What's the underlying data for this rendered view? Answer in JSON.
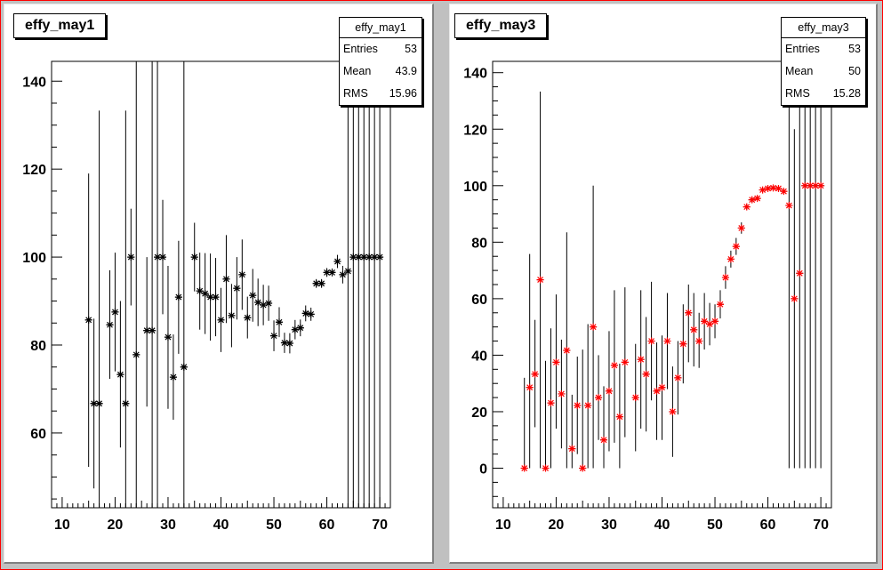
{
  "chart_data": [
    {
      "type": "scatter",
      "title": "effy_may1",
      "stats": {
        "name": "effy_may1",
        "entries_label": "Entries",
        "entries": "53",
        "mean_label": "Mean",
        "mean": "43.9",
        "rms_label": "RMS",
        "rms": "15.96"
      },
      "xlim": [
        8,
        72
      ],
      "ylim": [
        43,
        144.5
      ],
      "xticks": [
        10,
        20,
        30,
        40,
        50,
        60,
        70
      ],
      "yticks": [
        60,
        80,
        100,
        120,
        140
      ],
      "marker": "star",
      "color": "#000000",
      "points": [
        {
          "x": 15,
          "y": 85.7,
          "lo": 52.3,
          "hi": 119
        },
        {
          "x": 16,
          "y": 66.7,
          "lo": 47.4,
          "hi": 86
        },
        {
          "x": 17,
          "y": 66.7,
          "lo": 0,
          "hi": 133.3
        },
        {
          "x": 19,
          "y": 84.6,
          "lo": 72.3,
          "hi": 97
        },
        {
          "x": 20,
          "y": 87.5,
          "lo": 74,
          "hi": 101
        },
        {
          "x": 21,
          "y": 73.3,
          "lo": 56.7,
          "hi": 90
        },
        {
          "x": 22,
          "y": 66.7,
          "lo": 0,
          "hi": 133.3
        },
        {
          "x": 23,
          "y": 100,
          "lo": 89,
          "hi": 111
        },
        {
          "x": 24,
          "y": 77.8,
          "lo": 0,
          "hi": 150
        },
        {
          "x": 26,
          "y": 83.3,
          "lo": 66,
          "hi": 100
        },
        {
          "x": 27,
          "y": 83.3,
          "lo": 0,
          "hi": 150
        },
        {
          "x": 28,
          "y": 100,
          "lo": 0,
          "hi": 150
        },
        {
          "x": 29,
          "y": 100,
          "lo": 87,
          "hi": 113
        },
        {
          "x": 30,
          "y": 81.8,
          "lo": 65.5,
          "hi": 98
        },
        {
          "x": 31,
          "y": 72.7,
          "lo": 63,
          "hi": 82.4
        },
        {
          "x": 32,
          "y": 90.9,
          "lo": 78,
          "hi": 103.7
        },
        {
          "x": 33,
          "y": 75,
          "lo": 0,
          "hi": 150
        },
        {
          "x": 35,
          "y": 100,
          "lo": 92.2,
          "hi": 107.8
        },
        {
          "x": 36,
          "y": 92.3,
          "lo": 83.5,
          "hi": 101
        },
        {
          "x": 37,
          "y": 91.7,
          "lo": 82.5,
          "hi": 100.9
        },
        {
          "x": 38,
          "y": 90.9,
          "lo": 81,
          "hi": 100.8
        },
        {
          "x": 39,
          "y": 90.9,
          "lo": 82,
          "hi": 99.8
        },
        {
          "x": 40,
          "y": 85.7,
          "lo": 78.4,
          "hi": 93
        },
        {
          "x": 41,
          "y": 95,
          "lo": 85,
          "hi": 105
        },
        {
          "x": 42,
          "y": 86.7,
          "lo": 79.5,
          "hi": 93.9
        },
        {
          "x": 43,
          "y": 92.9,
          "lo": 85.8,
          "hi": 100
        },
        {
          "x": 44,
          "y": 96,
          "lo": 88,
          "hi": 104
        },
        {
          "x": 45,
          "y": 86.2,
          "lo": 81.5,
          "hi": 91
        },
        {
          "x": 46,
          "y": 91.3,
          "lo": 85.3,
          "hi": 97.3
        },
        {
          "x": 47,
          "y": 89.7,
          "lo": 84.3,
          "hi": 95.1
        },
        {
          "x": 48,
          "y": 89.1,
          "lo": 84.5,
          "hi": 93.7
        },
        {
          "x": 49,
          "y": 89.5,
          "lo": 85.5,
          "hi": 93.5
        },
        {
          "x": 50,
          "y": 82.1,
          "lo": 78.6,
          "hi": 85.6
        },
        {
          "x": 51,
          "y": 85.2,
          "lo": 81.8,
          "hi": 88.6
        },
        {
          "x": 52,
          "y": 80.5,
          "lo": 78.2,
          "hi": 82.8
        },
        {
          "x": 53,
          "y": 80.4,
          "lo": 78.1,
          "hi": 82.7
        },
        {
          "x": 54,
          "y": 83.5,
          "lo": 81.3,
          "hi": 85.7
        },
        {
          "x": 55,
          "y": 83.9,
          "lo": 82,
          "hi": 85.8
        },
        {
          "x": 56,
          "y": 87.2,
          "lo": 85.4,
          "hi": 89
        },
        {
          "x": 57,
          "y": 87,
          "lo": 85.5,
          "hi": 88.5
        },
        {
          "x": 58,
          "y": 94,
          "lo": 93,
          "hi": 95
        },
        {
          "x": 59,
          "y": 94,
          "lo": 93,
          "hi": 95
        },
        {
          "x": 60,
          "y": 96.5,
          "lo": 95.5,
          "hi": 97.5
        },
        {
          "x": 61,
          "y": 96.5,
          "lo": 95.6,
          "hi": 97.4
        },
        {
          "x": 62,
          "y": 99,
          "lo": 97.5,
          "hi": 100.5
        },
        {
          "x": 63,
          "y": 96,
          "lo": 94,
          "hi": 98
        },
        {
          "x": 64,
          "y": 96.8,
          "lo": 0,
          "hi": 150
        },
        {
          "x": 65,
          "y": 100,
          "lo": 0,
          "hi": 150
        },
        {
          "x": 66,
          "y": 100,
          "lo": 0,
          "hi": 150
        },
        {
          "x": 67,
          "y": 100,
          "lo": 0,
          "hi": 150
        },
        {
          "x": 68,
          "y": 100,
          "lo": 0,
          "hi": 150
        },
        {
          "x": 69,
          "y": 100,
          "lo": 0,
          "hi": 150
        },
        {
          "x": 70,
          "y": 100,
          "lo": 0,
          "hi": 150
        }
      ]
    },
    {
      "type": "scatter",
      "title": "effy_may3",
      "stats": {
        "name": "effy_may3",
        "entries_label": "Entries",
        "entries": "53",
        "mean_label": "Mean",
        "mean": "50",
        "rms_label": "RMS",
        "rms": "15.28"
      },
      "xlim": [
        8,
        72
      ],
      "ylim": [
        -14,
        144
      ],
      "xticks": [
        10,
        20,
        30,
        40,
        50,
        60,
        70
      ],
      "yticks": [
        0,
        20,
        40,
        60,
        80,
        100,
        120,
        140
      ],
      "marker": "star",
      "color": "#ff0000",
      "points": [
        {
          "x": 14,
          "y": 0,
          "lo": 0,
          "hi": 32
        },
        {
          "x": 15,
          "y": 28.6,
          "lo": 0,
          "hi": 75.8
        },
        {
          "x": 16,
          "y": 33.3,
          "lo": 14.5,
          "hi": 52.5
        },
        {
          "x": 17,
          "y": 66.7,
          "lo": 0,
          "hi": 133.3
        },
        {
          "x": 18,
          "y": 0,
          "lo": 0,
          "hi": 38
        },
        {
          "x": 19,
          "y": 23.1,
          "lo": 0,
          "hi": 49.5
        },
        {
          "x": 20,
          "y": 37.5,
          "lo": 14,
          "hi": 61.5
        },
        {
          "x": 21,
          "y": 26.3,
          "lo": 7,
          "hi": 45.5
        },
        {
          "x": 22,
          "y": 41.7,
          "lo": 0,
          "hi": 83.5
        },
        {
          "x": 23,
          "y": 6.9,
          "lo": 0,
          "hi": 26
        },
        {
          "x": 24,
          "y": 22.2,
          "lo": 5,
          "hi": 39.5
        },
        {
          "x": 25,
          "y": 0,
          "lo": 0,
          "hi": 42
        },
        {
          "x": 26,
          "y": 22.2,
          "lo": 0,
          "hi": 51
        },
        {
          "x": 27,
          "y": 50,
          "lo": 0,
          "hi": 100
        },
        {
          "x": 28,
          "y": 25,
          "lo": 10,
          "hi": 40
        },
        {
          "x": 29,
          "y": 10,
          "lo": 0,
          "hi": 29
        },
        {
          "x": 30,
          "y": 27.3,
          "lo": 6,
          "hi": 48.5
        },
        {
          "x": 31,
          "y": 36.4,
          "lo": 9,
          "hi": 63
        },
        {
          "x": 32,
          "y": 18.2,
          "lo": 0,
          "hi": 37
        },
        {
          "x": 33,
          "y": 37.5,
          "lo": 11,
          "hi": 64
        },
        {
          "x": 35,
          "y": 25,
          "lo": 6,
          "hi": 44
        },
        {
          "x": 36,
          "y": 38.5,
          "lo": 14,
          "hi": 63
        },
        {
          "x": 37,
          "y": 33.3,
          "lo": 13,
          "hi": 53.5
        },
        {
          "x": 38,
          "y": 45,
          "lo": 24,
          "hi": 66
        },
        {
          "x": 39,
          "y": 27.3,
          "lo": 10,
          "hi": 44.5
        },
        {
          "x": 40,
          "y": 28.6,
          "lo": 10,
          "hi": 47
        },
        {
          "x": 41,
          "y": 45,
          "lo": 28,
          "hi": 62
        },
        {
          "x": 42,
          "y": 20,
          "lo": 4,
          "hi": 36
        },
        {
          "x": 43,
          "y": 32,
          "lo": 19,
          "hi": 45
        },
        {
          "x": 44,
          "y": 44,
          "lo": 30,
          "hi": 58
        },
        {
          "x": 45,
          "y": 55,
          "lo": 37.5,
          "hi": 65
        },
        {
          "x": 46,
          "y": 49,
          "lo": 36,
          "hi": 62
        },
        {
          "x": 47,
          "y": 45,
          "lo": 35.5,
          "hi": 55
        },
        {
          "x": 48,
          "y": 52,
          "lo": 42,
          "hi": 62
        },
        {
          "x": 49,
          "y": 51,
          "lo": 43.5,
          "hi": 58.5
        },
        {
          "x": 50,
          "y": 52,
          "lo": 46,
          "hi": 58
        },
        {
          "x": 51,
          "y": 58,
          "lo": 53,
          "hi": 63
        },
        {
          "x": 52,
          "y": 67.5,
          "lo": 63.5,
          "hi": 71.5
        },
        {
          "x": 53,
          "y": 74,
          "lo": 71,
          "hi": 77
        },
        {
          "x": 54,
          "y": 78.5,
          "lo": 75.5,
          "hi": 81.5
        },
        {
          "x": 55,
          "y": 85,
          "lo": 83,
          "hi": 87
        },
        {
          "x": 56,
          "y": 92.5,
          "lo": 91.5,
          "hi": 93.5
        },
        {
          "x": 57,
          "y": 95,
          "lo": 94,
          "hi": 96
        },
        {
          "x": 58,
          "y": 95.5,
          "lo": 94.8,
          "hi": 96.2
        },
        {
          "x": 59,
          "y": 98.5,
          "lo": 98,
          "hi": 99
        },
        {
          "x": 60,
          "y": 99,
          "lo": 98.5,
          "hi": 99.5
        },
        {
          "x": 61,
          "y": 99.2,
          "lo": 98.8,
          "hi": 99.6
        },
        {
          "x": 62,
          "y": 99,
          "lo": 98.5,
          "hi": 99.5
        },
        {
          "x": 63,
          "y": 98,
          "lo": 97,
          "hi": 99
        },
        {
          "x": 64,
          "y": 93,
          "lo": 0,
          "hi": 150
        },
        {
          "x": 65,
          "y": 60,
          "lo": 0,
          "hi": 120
        },
        {
          "x": 66,
          "y": 69,
          "lo": 0,
          "hi": 150
        },
        {
          "x": 67,
          "y": 100,
          "lo": 0,
          "hi": 150
        },
        {
          "x": 68,
          "y": 100,
          "lo": 0,
          "hi": 150
        },
        {
          "x": 69,
          "y": 100,
          "lo": 0,
          "hi": 150
        },
        {
          "x": 70,
          "y": 100,
          "lo": 0,
          "hi": 150
        }
      ]
    }
  ]
}
